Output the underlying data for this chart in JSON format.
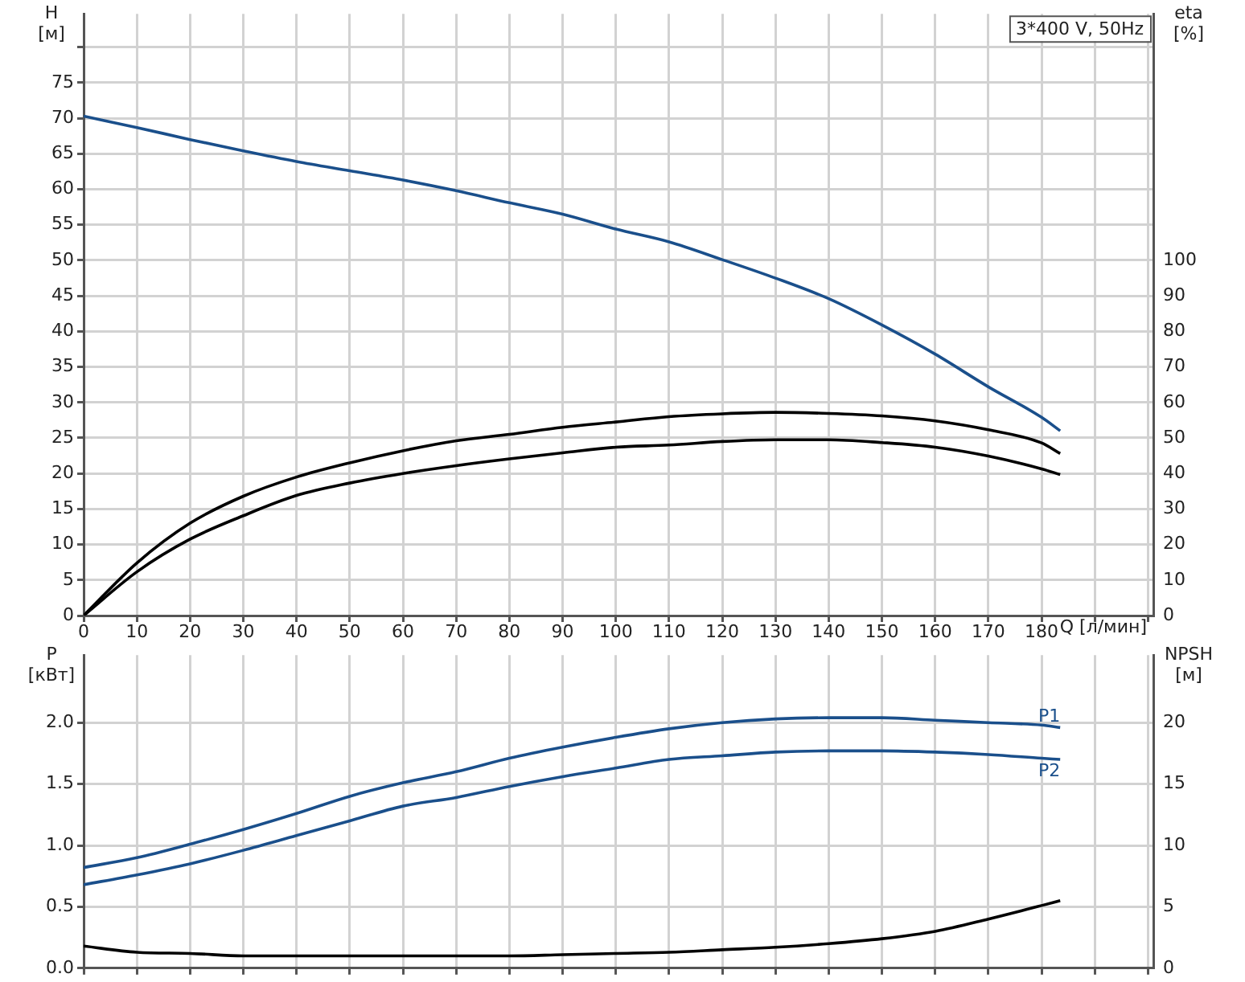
{
  "chart_data": [
    {
      "type": "line",
      "title": "3*400 V, 50Hz",
      "xlabel": "Q [л/мин]",
      "ylabel": "H\n[м]",
      "y2label": "eta\n[%]",
      "x": [
        0,
        10,
        20,
        30,
        40,
        50,
        60,
        70,
        80,
        90,
        100,
        110,
        120,
        130,
        140,
        150,
        160,
        170,
        180,
        183.5
      ],
      "series": [
        {
          "color": "#1a4f8b",
          "values": [
            70.3,
            68.7,
            67.0,
            65.4,
            63.9,
            62.6,
            61.3,
            59.8,
            58.1,
            56.5,
            54.4,
            52.6,
            50.1,
            47.5,
            44.6,
            40.9,
            36.8,
            32.2,
            27.9,
            26.0
          ]
        },
        {
          "color": "#000000",
          "axis": "y2",
          "values": [
            0,
            14.8,
            26,
            33.6,
            39,
            43,
            46.4,
            49.2,
            51,
            53,
            54.5,
            56,
            56.8,
            57.2,
            56.9,
            56.2,
            54.8,
            52.3,
            48.6,
            45.6
          ]
        },
        {
          "color": "#000000",
          "axis": "y2",
          "values": [
            0,
            12.3,
            21.5,
            28.1,
            33.8,
            37.3,
            40,
            42.2,
            44.1,
            45.8,
            47.4,
            48,
            49,
            49.5,
            49.5,
            48.7,
            47.4,
            44.9,
            41.3,
            39.7
          ]
        }
      ],
      "xlim": [
        0,
        201
      ],
      "xticks": [
        0,
        10,
        20,
        30,
        40,
        50,
        60,
        70,
        80,
        90,
        100,
        110,
        120,
        130,
        140,
        150,
        160,
        170,
        180,
        {
          "value": 190,
          "label": null
        },
        {
          "value": 200,
          "label": null
        }
      ],
      "ylim": [
        0,
        84.7
      ],
      "yticks": [
        0,
        5,
        10,
        15,
        20,
        25,
        30,
        35,
        40,
        45,
        50,
        55,
        60,
        65,
        70,
        75,
        {
          "value": 80,
          "label": null
        }
      ],
      "y2lim": [
        0,
        169.4
      ],
      "y2ticks": [
        0,
        10,
        20,
        30,
        40,
        50,
        60,
        70,
        80,
        90,
        100
      ],
      "grid": true,
      "legend": false,
      "marker": "none",
      "line_style": "solid"
    },
    {
      "type": "line",
      "ylabel": "P\n[кВт]",
      "y2label": "NPSH\n[м]",
      "x": [
        0,
        10,
        20,
        30,
        40,
        50,
        60,
        70,
        80,
        90,
        100,
        110,
        120,
        130,
        140,
        150,
        160,
        170,
        180,
        183.5
      ],
      "series": [
        {
          "name": "P1",
          "color": "#1a4f8b",
          "values": [
            0.82,
            0.9,
            1.01,
            1.13,
            1.26,
            1.4,
            1.51,
            1.6,
            1.71,
            1.8,
            1.88,
            1.95,
            2.0,
            2.03,
            2.04,
            2.04,
            2.02,
            2.0,
            1.98,
            1.96
          ]
        },
        {
          "name": "P2",
          "color": "#1a4f8b",
          "values": [
            0.68,
            0.76,
            0.85,
            0.96,
            1.08,
            1.2,
            1.32,
            1.39,
            1.48,
            1.56,
            1.63,
            1.7,
            1.73,
            1.76,
            1.77,
            1.77,
            1.76,
            1.74,
            1.71,
            1.7
          ]
        },
        {
          "color": "#000000",
          "axis": "y2",
          "values": [
            1.8,
            1.3,
            1.2,
            1.0,
            1.0,
            1.0,
            1.0,
            1.0,
            1.0,
            1.1,
            1.2,
            1.3,
            1.5,
            1.7,
            2.0,
            2.4,
            3.0,
            4.0,
            5.1,
            5.5
          ]
        }
      ],
      "xlim": [
        0,
        201
      ],
      "xticks": [
        0,
        10,
        20,
        30,
        40,
        50,
        60,
        70,
        80,
        90,
        100,
        110,
        120,
        130,
        140,
        150,
        160,
        170,
        180,
        190,
        200
      ],
      "ylim": [
        0,
        2.55
      ],
      "yticks": [
        {
          "value": 0,
          "label": "0.0"
        },
        0.5,
        {
          "value": 1,
          "label": "1.0"
        },
        1.5,
        {
          "value": 2,
          "label": "2.0"
        }
      ],
      "y2lim": [
        0,
        25.5
      ],
      "y2ticks": [
        0,
        5,
        10,
        15,
        20
      ],
      "tick_labels": "y",
      "grid": true,
      "legend": false,
      "marker": "none",
      "line_style": "solid"
    }
  ]
}
